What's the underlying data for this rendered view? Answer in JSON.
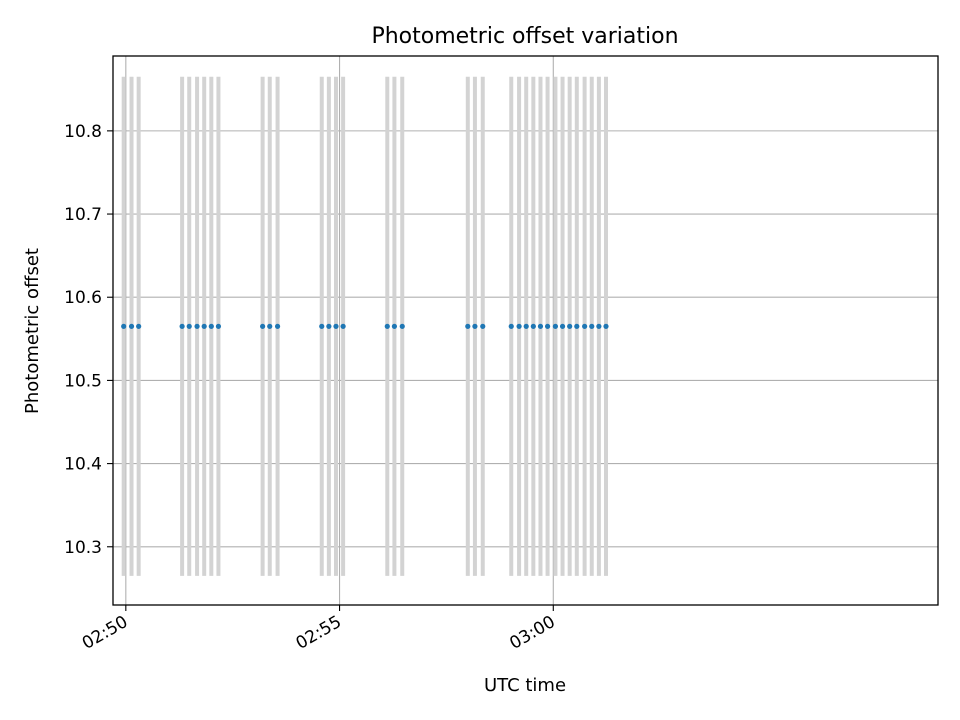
{
  "chart_data": {
    "type": "scatter",
    "title": "Photometric offset variation",
    "xlabel": "UTC time",
    "ylabel": "Photometric offset",
    "xlim": [
      "02:49:42",
      "03:09:00"
    ],
    "ylim": [
      10.23,
      10.89
    ],
    "x_ticks": [
      "02:50",
      "02:55",
      "03:00"
    ],
    "y_ticks": [
      "10.3",
      "10.4",
      "10.5",
      "10.6",
      "10.7",
      "10.8"
    ],
    "grid": true,
    "error_bar_color": "#d3d3d3",
    "marker_color": "#1f77b4",
    "series": [
      {
        "y_value": 10.565,
        "y_error": 0.3,
        "x": [
          "02:49:57",
          "02:50:08",
          "02:50:18",
          "02:51:19",
          "02:51:29",
          "02:51:40",
          "02:51:50",
          "02:52:00",
          "02:52:10",
          "02:53:12",
          "02:53:22",
          "02:53:33",
          "02:54:35",
          "02:54:45",
          "02:54:55",
          "02:55:05",
          "02:56:07",
          "02:56:17",
          "02:56:28",
          "02:58:00",
          "02:58:10",
          "02:58:21",
          "02:59:01",
          "02:59:12",
          "02:59:22",
          "02:59:32",
          "02:59:42",
          "02:59:52",
          "03:00:03",
          "03:00:13",
          "03:00:23",
          "03:00:33",
          "03:00:44",
          "03:00:54",
          "03:01:04",
          "03:01:14"
        ]
      }
    ]
  }
}
